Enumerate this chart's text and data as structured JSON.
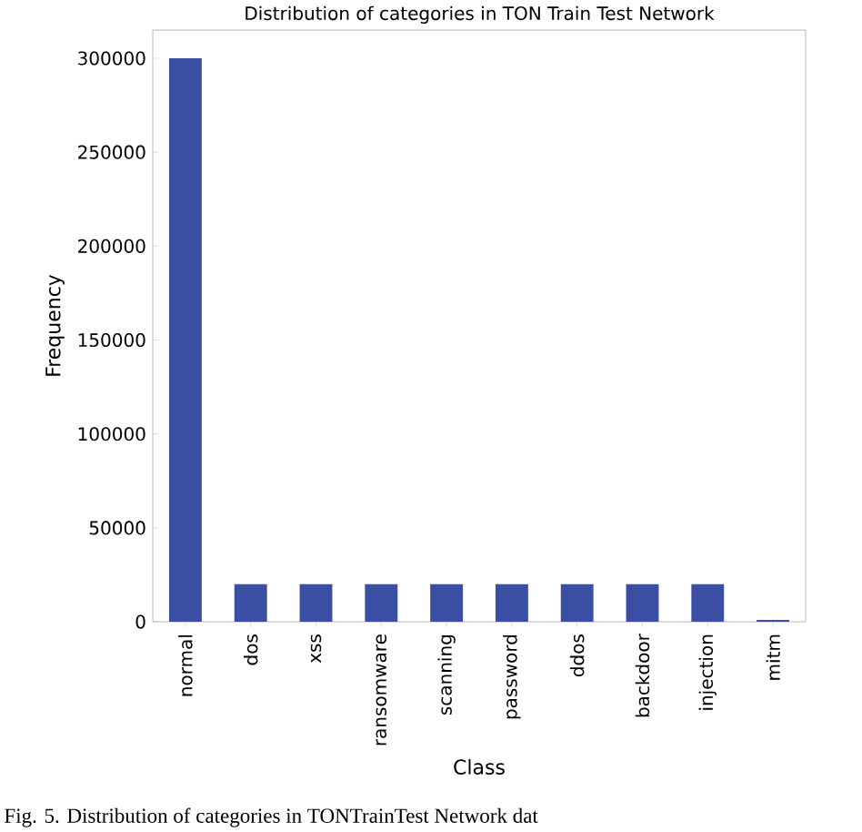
{
  "chart_data": {
    "type": "bar",
    "title": "Distribution of categories in TON Train Test Network",
    "xlabel": "Class",
    "ylabel": "Frequency",
    "categories": [
      "normal",
      "dos",
      "xss",
      "ransomware",
      "scanning",
      "password",
      "ddos",
      "backdoor",
      "injection",
      "mitm"
    ],
    "values": [
      300000,
      20000,
      20000,
      20000,
      20000,
      20000,
      20000,
      20000,
      20000,
      1000
    ],
    "color": "#3a4fa3",
    "ylim": [
      0,
      315000
    ],
    "yticks": [
      0,
      50000,
      100000,
      150000,
      200000,
      250000,
      300000
    ],
    "annotations": [
      "Fig. 5.   Distribution of categories in TONTrainTest Network dat"
    ]
  }
}
